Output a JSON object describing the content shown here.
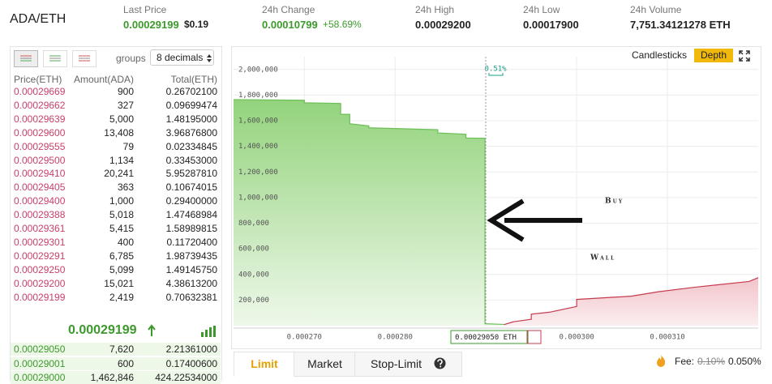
{
  "header": {
    "pair": "ADA/ETH",
    "stats": [
      {
        "label": "Last Price",
        "value": "0.00029199",
        "secondary": "$0.19"
      },
      {
        "label": "24h Change",
        "value": "0.00010799",
        "secondary": "+58.69%"
      },
      {
        "label": "24h High",
        "value": "0.00029200"
      },
      {
        "label": "24h Low",
        "value": "0.00017900"
      },
      {
        "label": "24h Volume",
        "value": "7,751.34121278 ETH"
      }
    ]
  },
  "order_book": {
    "groups_label": "groups",
    "decimals": "8 decimals",
    "columns": [
      "Price(ETH)",
      "Amount(ADA)",
      "Total(ETH)"
    ],
    "asks": [
      [
        "0.00029669",
        "900",
        "0.26702100"
      ],
      [
        "0.00029662",
        "327",
        "0.09699474"
      ],
      [
        "0.00029639",
        "5,000",
        "1.48195000"
      ],
      [
        "0.00029600",
        "13,408",
        "3.96876800"
      ],
      [
        "0.00029555",
        "79",
        "0.02334845"
      ],
      [
        "0.00029500",
        "1,134",
        "0.33453000"
      ],
      [
        "0.00029410",
        "20,241",
        "5.95287810"
      ],
      [
        "0.00029405",
        "363",
        "0.10674015"
      ],
      [
        "0.00029400",
        "1,000",
        "0.29400000"
      ],
      [
        "0.00029388",
        "5,018",
        "1.47468984"
      ],
      [
        "0.00029361",
        "5,415",
        "1.58989815"
      ],
      [
        "0.00029301",
        "400",
        "0.11720400"
      ],
      [
        "0.00029291",
        "6,785",
        "1.98739435"
      ],
      [
        "0.00029250",
        "5,099",
        "1.49145750"
      ],
      [
        "0.00029200",
        "15,021",
        "4.38613200"
      ],
      [
        "0.00029199",
        "2,419",
        "0.70632381"
      ]
    ],
    "last_price": "0.00029199",
    "bids": [
      [
        "0.00029050",
        "7,620",
        "2.21361000"
      ],
      [
        "0.00029001",
        "600",
        "0.17400600"
      ],
      [
        "0.00029000",
        "1,462,846",
        "424.22534000"
      ]
    ]
  },
  "chart_controls": [
    "Candlesticks",
    "Depth"
  ],
  "chart_data": {
    "type": "depth",
    "xlim": [
      0.0002622,
      0.00032
    ],
    "ylim": [
      0,
      2100000
    ],
    "xticks": [
      {
        "value": 0.00027,
        "label": "0.000270"
      },
      {
        "value": 0.00028,
        "label": "0.000280"
      },
      {
        "value": 0.0003,
        "label": "0.000300"
      },
      {
        "value": 0.00031,
        "label": "0.000310"
      }
    ],
    "yticks": [
      {
        "value": 200000,
        "label": "200,000"
      },
      {
        "value": 400000,
        "label": "400,000"
      },
      {
        "value": 600000,
        "label": "600,000"
      },
      {
        "value": 800000,
        "label": "800,000"
      },
      {
        "value": 1000000,
        "label": "1,000,000"
      },
      {
        "value": 1200000,
        "label": "1,200,000"
      },
      {
        "value": 1400000,
        "label": "1,400,000"
      },
      {
        "value": 1600000,
        "label": "1,600,000"
      },
      {
        "value": 1800000,
        "label": "1,800,000"
      },
      {
        "value": 2000000,
        "label": "2,000,000"
      }
    ],
    "grid": true,
    "series": [
      {
        "color": "#6cbf56",
        "x": [
          0.0002622,
          0.00027,
          0.00027,
          0.000274,
          0.000274,
          0.000275,
          0.000275,
          0.0002771,
          0.0002771,
          0.0002847,
          0.0002847,
          0.0002878,
          0.0002878,
          0.0002899,
          0.0002899,
          0.000292
        ],
        "values": [
          1765000,
          1760000,
          1740000,
          1735000,
          1650000,
          1650000,
          1577000,
          1560000,
          1545000,
          1530000,
          1505000,
          1495000,
          1465000,
          1463000,
          15000,
          10000
        ]
      },
      {
        "color": "#c43c4e",
        "x": [
          0.000292,
          0.000293,
          0.000295,
          0.000295,
          0.000297,
          0.0003,
          0.0003,
          0.000306,
          0.000309,
          0.000313,
          0.000319,
          0.00032
        ],
        "values": [
          8000,
          30000,
          50000,
          90000,
          105000,
          150000,
          205000,
          230000,
          265000,
          300000,
          345000,
          375000
        ]
      }
    ],
    "spread_label": "0.51%",
    "cursor_label": "0.00029050 ETH",
    "annotation": [
      "Buy",
      "Wall"
    ]
  },
  "order_form": {
    "tabs": [
      "Limit",
      "Market",
      "Stop-Limit"
    ],
    "fee_label": "Fee:",
    "fee_old": "0.10%",
    "fee_new": "0.050%"
  }
}
